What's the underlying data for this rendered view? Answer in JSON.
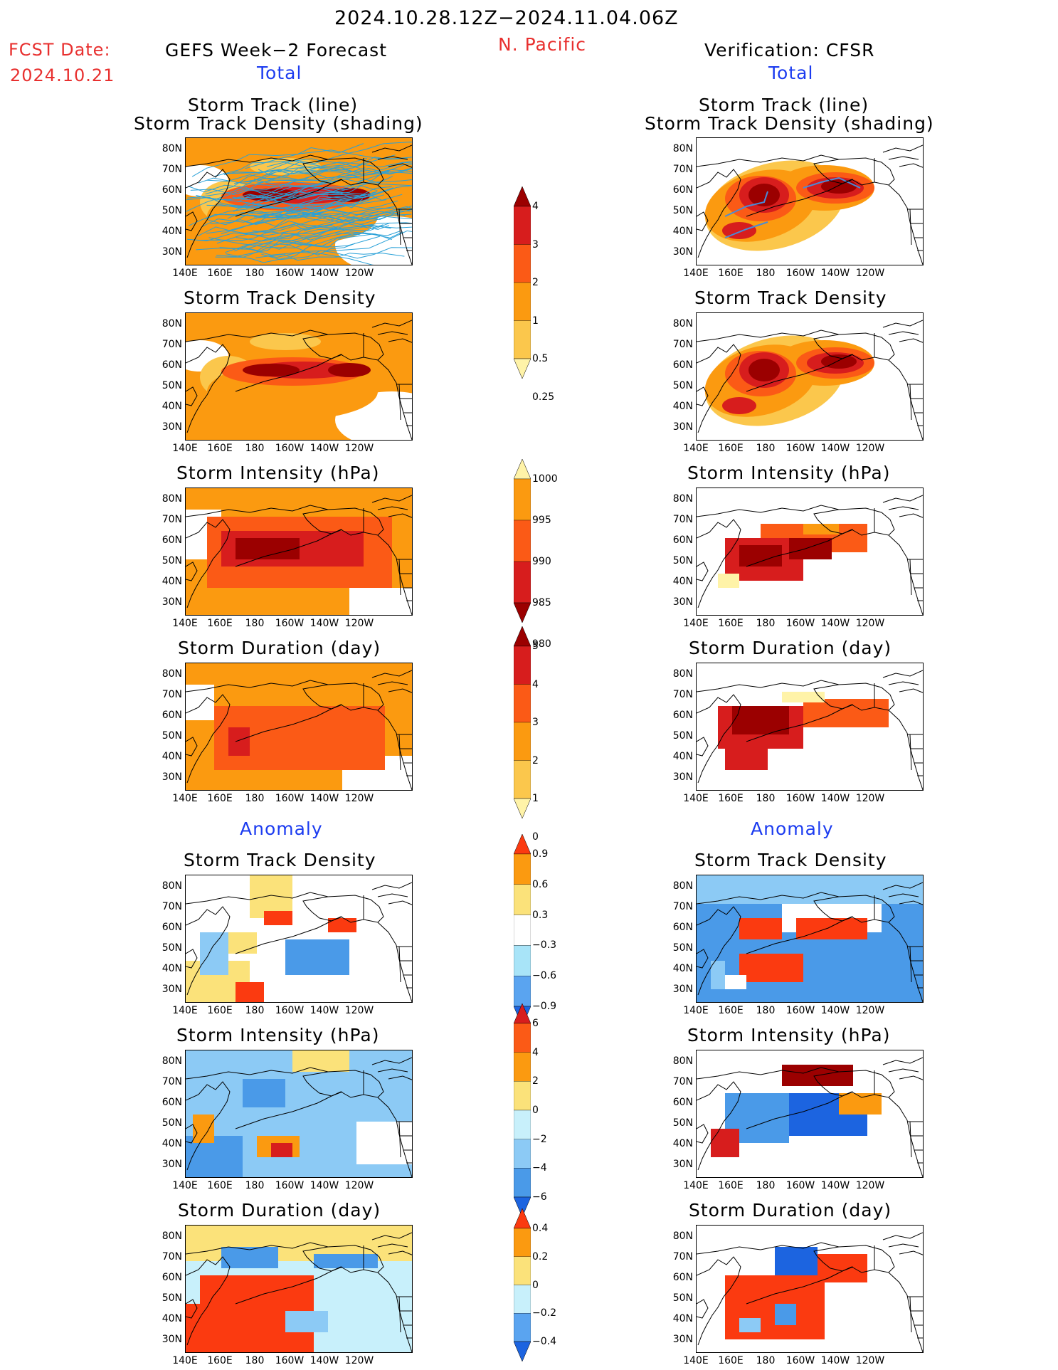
{
  "header": {
    "date_range": "2024.10.28.12Z−2024.11.04.06Z",
    "fcst_label": "FCST Date:",
    "fcst_date": "2024.10.21",
    "left_title": "GEFS Week−2 Forecast",
    "region": "N. Pacific",
    "right_title": "Verification: CFSR",
    "total_label": "Total",
    "anomaly_label": "Anomaly"
  },
  "axes": {
    "lat_ticks": [
      "80N",
      "70N",
      "60N",
      "50N",
      "40N",
      "30N"
    ],
    "lon_ticks": [
      "140E",
      "160E",
      "180",
      "160W",
      "140W",
      "120W"
    ]
  },
  "panel_titles": {
    "track_line": "Storm Track (line)",
    "track_density_shading": "Storm Track Density (shading)",
    "track_density": "Storm Track Density",
    "intensity": "Storm Intensity (hPa)",
    "duration": "Storm Duration (day)"
  },
  "colorbars": {
    "density": {
      "labels": [
        "4",
        "3",
        "2",
        "1",
        "0.5",
        "0.25"
      ],
      "colors": [
        "#9b0000",
        "#d71d1d",
        "#fb5a16",
        "#fb9a10",
        "#fbc74c",
        "#fff3a8"
      ]
    },
    "intensity": {
      "labels": [
        "1000",
        "995",
        "990",
        "985",
        "980"
      ],
      "colors": [
        "#fff3a8",
        "#fb9a10",
        "#fb5a16",
        "#d71d1d",
        "#9b0000"
      ]
    },
    "duration": {
      "labels": [
        "5",
        "4",
        "3",
        "2",
        "1",
        "0"
      ],
      "colors": [
        "#9b0000",
        "#d71d1d",
        "#fb5a16",
        "#fb9a10",
        "#fbc74c",
        "#fff3a8"
      ]
    },
    "anom_density": {
      "labels": [
        "0.9",
        "0.6",
        "0.3",
        "−0.3",
        "−0.6",
        "−0.9"
      ],
      "colors": [
        "#fb3a10",
        "#fb9a10",
        "#fbe27a",
        "#ffffff",
        "#a8e4f8",
        "#5aa4f0",
        "#1c64e0"
      ]
    },
    "anom_intensity": {
      "labels": [
        "6",
        "4",
        "2",
        "0",
        "−2",
        "−4",
        "−6"
      ],
      "colors": [
        "#d71d1d",
        "#fb5a16",
        "#fb9a10",
        "#fbe27a",
        "#c8f0fb",
        "#8ccaf5",
        "#4a9ae8",
        "#1c64e0"
      ]
    },
    "anom_duration": {
      "labels": [
        "0.4",
        "0.2",
        "0",
        "−0.2",
        "−0.4"
      ],
      "colors": [
        "#fb3a10",
        "#fb9a10",
        "#fbe27a",
        "#c8f0fb",
        "#5aa4f0",
        "#1c64e0"
      ]
    }
  }
}
